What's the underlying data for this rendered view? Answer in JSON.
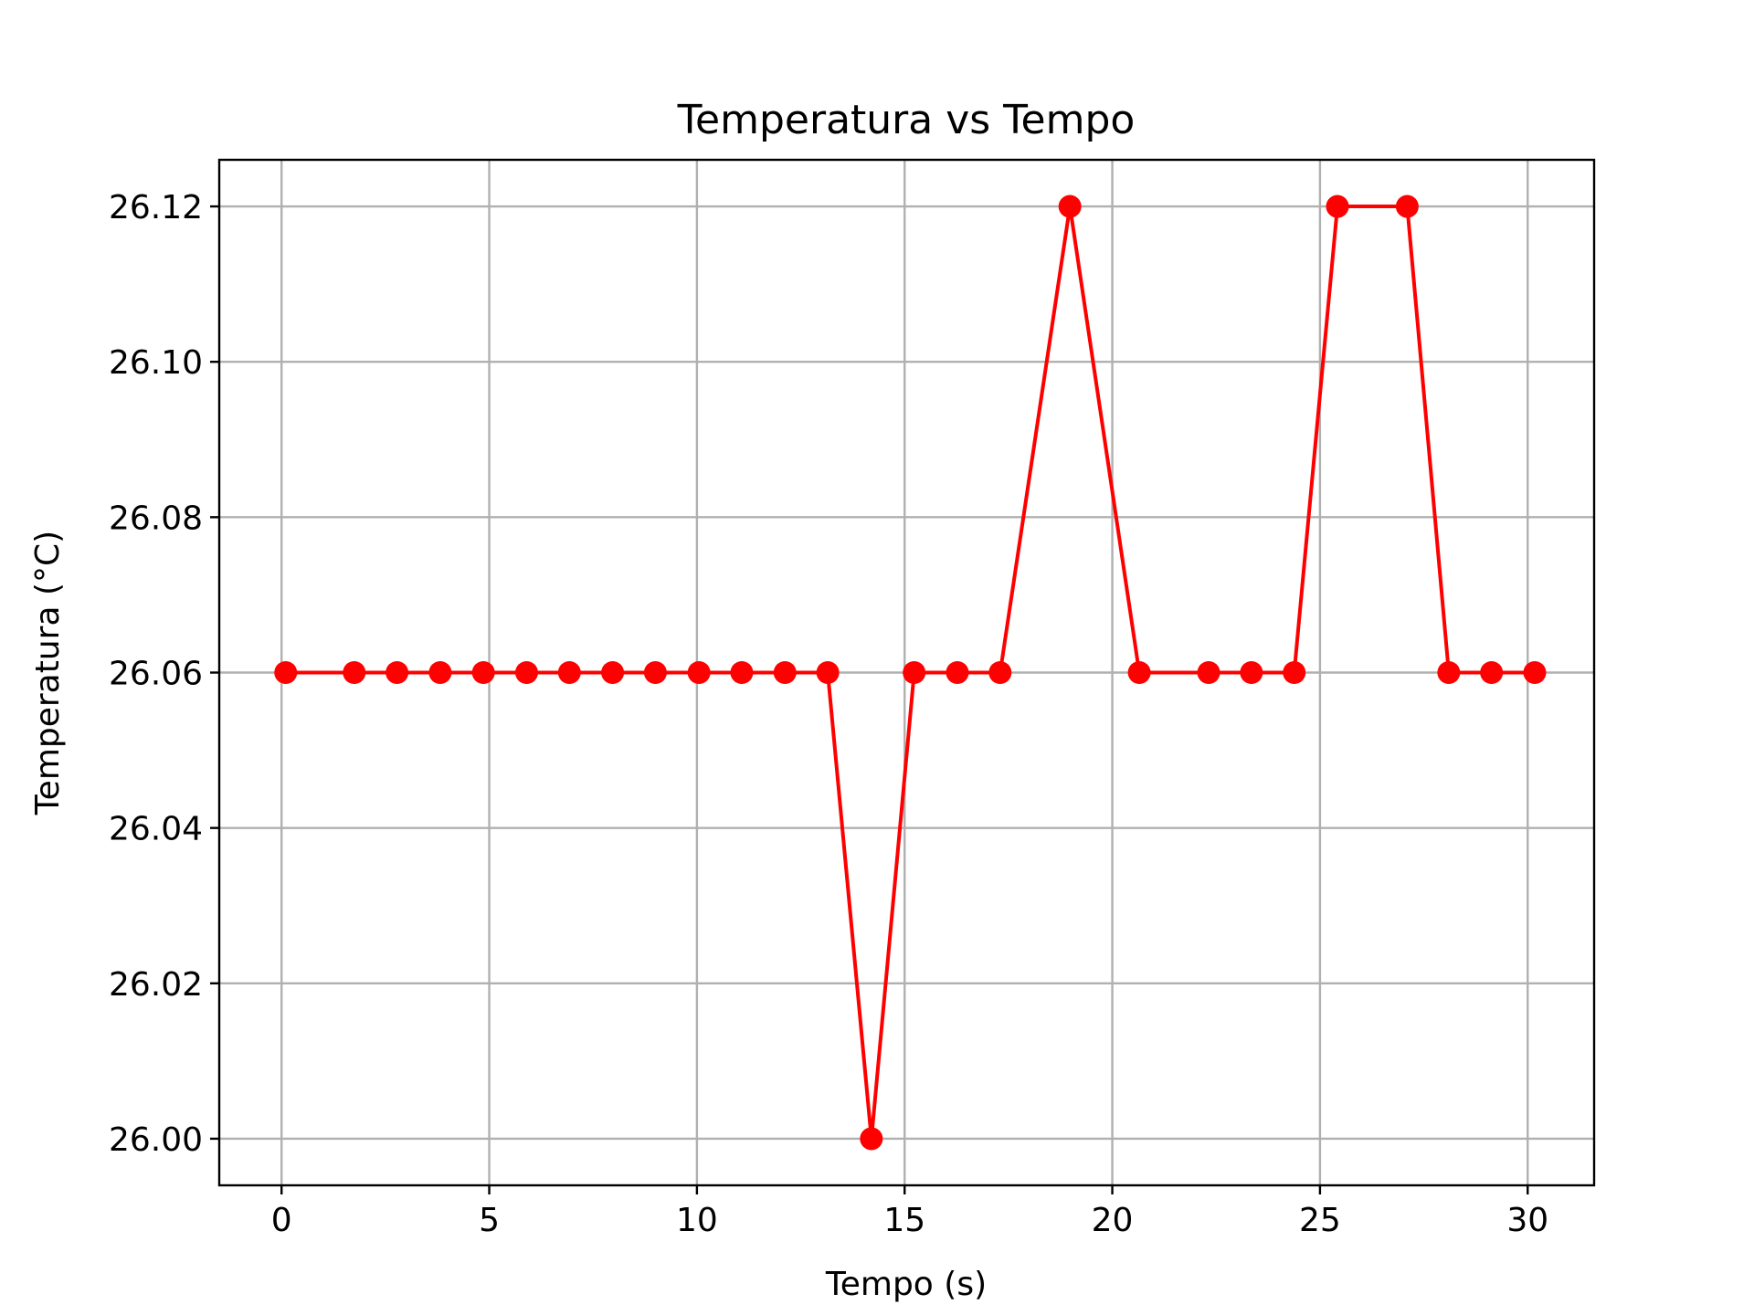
{
  "chart_data": {
    "type": "line",
    "title": "Temperatura vs Tempo",
    "xlabel": "Tempo (s)",
    "ylabel": "Temperatura (°C)",
    "xlim": [
      -1.5,
      31.6
    ],
    "ylim": [
      25.994,
      26.126
    ],
    "xticks": [
      0,
      5,
      10,
      15,
      20,
      25,
      30
    ],
    "xtick_labels": [
      "0",
      "5",
      "10",
      "15",
      "20",
      "25",
      "30"
    ],
    "yticks": [
      26.0,
      26.02,
      26.04,
      26.06,
      26.08,
      26.1,
      26.12
    ],
    "ytick_labels": [
      "26.00",
      "26.02",
      "26.04",
      "26.06",
      "26.08",
      "26.10",
      "26.12"
    ],
    "grid": true,
    "colors": {
      "series": "#ff0000"
    },
    "series": [
      {
        "x": [
          0.1,
          1.75,
          2.78,
          3.82,
          4.86,
          5.9,
          6.93,
          7.97,
          9.0,
          10.05,
          11.08,
          12.12,
          13.15,
          14.2,
          15.23,
          16.27,
          17.3,
          18.98,
          20.65,
          22.32,
          23.35,
          24.38,
          25.42,
          27.1,
          28.1,
          29.13,
          30.17
        ],
        "y": [
          26.06,
          26.06,
          26.06,
          26.06,
          26.06,
          26.06,
          26.06,
          26.06,
          26.06,
          26.06,
          26.06,
          26.06,
          26.06,
          26.0,
          26.06,
          26.06,
          26.06,
          26.12,
          26.06,
          26.06,
          26.06,
          26.06,
          26.12,
          26.12,
          26.06,
          26.06,
          26.06
        ]
      }
    ]
  }
}
